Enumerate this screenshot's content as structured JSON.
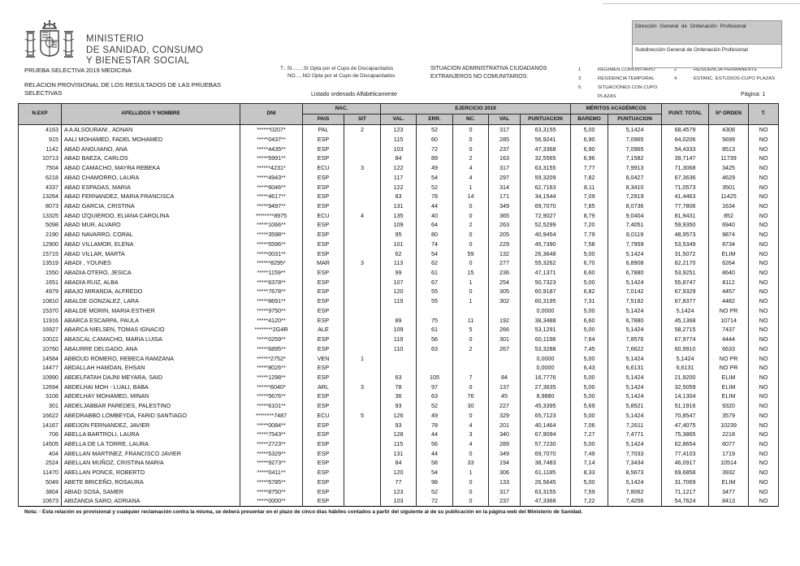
{
  "header": {
    "ministry_line1": "MINISTERIO",
    "ministry_line2": "DE SANIDAD, CONSUMO",
    "ministry_line3": "Y BIENESTAR SOCIAL",
    "title": "PRUEBA SELECTIVA 2019 MEDICINA",
    "subtitle_line1": "RELACION PROVISIONAL DE LOS RESULTADOS DE LAS PRUEBAS",
    "subtitle_line2": "SELECTIVAS",
    "cupo_line1": "T.: SI........SI Opta por el Cupo de Discapacitados",
    "cupo_line2": "NO.....NO Opta por el Cupo de Discapacitados",
    "situacion_line1": "SITUACION ADMINISTRATIVA CIUDADANOS",
    "situacion_line2": "EXTRANJEROS NO COMUNITARIOS:",
    "legend": [
      {
        "num": "1",
        "label": "REGIMEN COMUNITARIO"
      },
      {
        "num": "2",
        "label": "RESIDENCIA PERMANENTE"
      },
      {
        "num": "3",
        "label": "RESIDENCIA TEMPORAL"
      },
      {
        "num": "4",
        "label": "ESTANC. ESTUDIOS-CUPO PLAZAS"
      },
      {
        "num": "5",
        "label": "SITUACIONES CON CUPO PLAZAS"
      }
    ],
    "direccion": "Dirección General de Ordenación Profesional",
    "subdireccion": "Subdirección General de Ordenación Profesional",
    "listado": "Listado ordenado Alfabéticamente",
    "pagina": "Página: 1"
  },
  "table": {
    "group_headers": {
      "nac": "NAC.",
      "ejercicio": "EJERCICIO 2019",
      "meritos": "MÉRITOS ACADÉMICOS"
    },
    "columns": [
      "N.EXP",
      "APELLIDOS Y NOMBRE",
      "DNI",
      "PAIS",
      "SIT",
      "VAL.",
      "ERR.",
      "NC.",
      "VAL",
      "PUNTUACION",
      "BAREMO",
      "PUNTUACION",
      "PUNT. TOTAL",
      "Nº ORDEN",
      "T."
    ],
    "rows": [
      [
        "4163",
        "A A ALSOURANI , ADNAN",
        "******0207*",
        "PAL",
        "2",
        "123",
        "52",
        "0",
        "317",
        "63,3155",
        "5,00",
        "5,1424",
        "68,4579",
        "4308",
        "NO"
      ],
      [
        "915",
        "AALI MOHAMED, FADEL MOHAMED",
        "*****0437**",
        "ESP",
        "",
        "115",
        "60",
        "0",
        "285",
        "56,9241",
        "6,90",
        "7,0965",
        "64,0206",
        "5699",
        "NO"
      ],
      [
        "1142",
        "ABAD ANGUIANO, ANA",
        "*****4435**",
        "ESP",
        "",
        "103",
        "72",
        "0",
        "237",
        "47,3368",
        "6,90",
        "7,0965",
        "54,4333",
        "8513",
        "NO"
      ],
      [
        "10713",
        "ABAD BAEZA, CARLOS",
        "*****5991**",
        "ESP",
        "",
        "84",
        "89",
        "2",
        "163",
        "32,5565",
        "6,96",
        "7,1582",
        "39,7147",
        "11739",
        "NO"
      ],
      [
        "7504",
        "ABAD CAMACHO, MAYRA REBEKA",
        "******4231*",
        "ECU",
        "3",
        "122",
        "49",
        "4",
        "317",
        "63,3155",
        "7,77",
        "7,9913",
        "71,3068",
        "3425",
        "NO"
      ],
      [
        "6218",
        "ABAD CHAMORRO, LAURA",
        "*****4943**",
        "ESP",
        "",
        "117",
        "54",
        "4",
        "297",
        "59,3209",
        "7,82",
        "8,0427",
        "67,3636",
        "4629",
        "NO"
      ],
      [
        "4337",
        "ABAD ESPADAS, MARIA",
        "*****6046**",
        "ESP",
        "",
        "122",
        "52",
        "1",
        "314",
        "62,7163",
        "8,11",
        "8,3410",
        "71,0573",
        "3501",
        "NO"
      ],
      [
        "13264",
        "ABAD FERNANDEZ, MARIA FRANCISCA",
        "*****4617**",
        "ESP",
        "",
        "83",
        "78",
        "14",
        "171",
        "34,1544",
        "7,09",
        "7,2919",
        "41,4463",
        "11425",
        "NO"
      ],
      [
        "8073",
        "ABAD GARCIA, CRISTINA",
        "*****9497**",
        "ESP",
        "",
        "131",
        "44",
        "0",
        "349",
        "69,7070",
        "7,85",
        "8,0736",
        "77,7806",
        "1634",
        "NO"
      ],
      [
        "13325",
        "ABAD IZQUIERDO, ELIANA CAROLINA",
        "********8975",
        "ECU",
        "4",
        "135",
        "40",
        "0",
        "365",
        "72,9027",
        "8,79",
        "9,0404",
        "81,9431",
        "852",
        "NO"
      ],
      [
        "5098",
        "ABAD MUR, ALVARO",
        "*****1066**",
        "ESP",
        "",
        "109",
        "64",
        "2",
        "263",
        "52,5299",
        "7,20",
        "7,4051",
        "59,9350",
        "6940",
        "NO"
      ],
      [
        "2190",
        "ABAD NAVARRO, CORAL",
        "*****3598**",
        "ESP",
        "",
        "95",
        "80",
        "0",
        "205",
        "40,9454",
        "7,79",
        "8,0119",
        "48,9573",
        "9874",
        "NO"
      ],
      [
        "12900",
        "ABAD VILLAMOR, ELENA",
        "*****5596**",
        "ESP",
        "",
        "101",
        "74",
        "0",
        "229",
        "45,7390",
        "7,58",
        "7,7959",
        "53,5349",
        "8734",
        "NO"
      ],
      [
        "15715",
        "ABAD VILLAR, MARTA",
        "*****0031**",
        "ESP",
        "",
        "62",
        "54",
        "59",
        "132",
        "26,3648",
        "5,00",
        "5,1424",
        "31,5072",
        "ELIM",
        "NO"
      ],
      [
        "13519",
        "ABADI , YOUNES",
        "******8295*",
        "MAR",
        "3",
        "113",
        "62",
        "0",
        "277",
        "55,3262",
        "6,70",
        "6,8908",
        "62,2170",
        "6264",
        "NO"
      ],
      [
        "1550",
        "ABADIA OTERO, JESICA",
        "*****1159**",
        "ESP",
        "",
        "99",
        "61",
        "15",
        "236",
        "47,1371",
        "6,60",
        "6,7880",
        "53,9251",
        "8640",
        "NO"
      ],
      [
        "1651",
        "ABADIA RUIZ, ALBA",
        "*****6378**",
        "ESP",
        "",
        "107",
        "67",
        "1",
        "254",
        "50,7323",
        "5,00",
        "5,1424",
        "55,8747",
        "8112",
        "NO"
      ],
      [
        "4979",
        "ABAJO MIRANDA, ALFREDO",
        "*****7678**",
        "ESP",
        "",
        "120",
        "55",
        "0",
        "305",
        "60,9187",
        "6,82",
        "7,0142",
        "67,9329",
        "4457",
        "NO"
      ],
      [
        "10810",
        "ABALDE GONZALEZ, LARA",
        "*****8691**",
        "ESP",
        "",
        "119",
        "55",
        "1",
        "302",
        "60,3195",
        "7,31",
        "7,5182",
        "67,8377",
        "4482",
        "NO"
      ],
      [
        "15370",
        "ABALDE MORIN, MARIA ESTHER",
        "*****9750**",
        "ESP",
        "",
        "",
        "",
        "",
        "",
        "0,0000",
        "5,00",
        "5,1424",
        "5,1424",
        "NO PR",
        "NO"
      ],
      [
        "11916",
        "ABARCA ESCARPA, PAULA",
        "*****4120**",
        "ESP",
        "",
        "89",
        "75",
        "11",
        "192",
        "38,3488",
        "6,60",
        "6,7880",
        "45,1368",
        "10714",
        "NO"
      ],
      [
        "16927",
        "ABARCA NIELSEN, TOMAS IGNACIO",
        "********2G4R",
        "ALE",
        "",
        "109",
        "61",
        "5",
        "266",
        "53,1291",
        "5,00",
        "5,1424",
        "58,2715",
        "7437",
        "NO"
      ],
      [
        "10022",
        "ABASCAL CAMACHO, MARIA LUISA",
        "*****0259**",
        "ESP",
        "",
        "119",
        "56",
        "0",
        "301",
        "60,1198",
        "7,64",
        "7,8576",
        "67,9774",
        "4444",
        "NO"
      ],
      [
        "10760",
        "ABAURRE DELGADO, ANA",
        "*****6895**",
        "ESP",
        "",
        "110",
        "63",
        "2",
        "267",
        "53,3288",
        "7,45",
        "7,6622",
        "60,9910",
        "6633",
        "NO"
      ],
      [
        "14584",
        "ABBOUD ROMERO, REBECA RAMZANA",
        "******2752*",
        "VEN",
        "1",
        "",
        "",
        "",
        "",
        "0,0000",
        "5,00",
        "5,1424",
        "5,1424",
        "NO PR",
        "NO"
      ],
      [
        "14477",
        "ABDALLAH HAMDAN, EHSAN",
        "*****8026**",
        "ESP",
        "",
        "",
        "",
        "",
        "",
        "0,0000",
        "6,43",
        "6,6131",
        "6,6131",
        "NO PR",
        "NO"
      ],
      [
        "10990",
        "ABDELFATAH DAJNI MEYARA, SAID",
        "*****1298**",
        "ESP",
        "",
        "63",
        "105",
        "7",
        "84",
        "16,7776",
        "5,00",
        "5,1424",
        "21,9200",
        "ELIM",
        "NO"
      ],
      [
        "12694",
        "ABDELHAI MOH - LUALI, BABA",
        "******6040*",
        "ARL",
        "3",
        "78",
        "97",
        "0",
        "137",
        "27,3635",
        "5,00",
        "5,1424",
        "32,5059",
        "ELIM",
        "NO"
      ],
      [
        "3106",
        "ABDELHAY MOHAMED, MINAN",
        "*****5676**",
        "ESP",
        "",
        "36",
        "63",
        "76",
        "45",
        "8,9880",
        "5,00",
        "5,1424",
        "14,1304",
        "ELIM",
        "NO"
      ],
      [
        "301",
        "ABDELJABBAR PAREDES, PALESTINO",
        "*****6101**",
        "ESP",
        "",
        "93",
        "52",
        "30",
        "227",
        "45,3395",
        "5,69",
        "5,8521",
        "51,1916",
        "9320",
        "NO"
      ],
      [
        "16622",
        "ABEDRABBO LOMBEYDA, FARID SANTIAGO",
        "********7487",
        "ECU",
        "5",
        "126",
        "49",
        "0",
        "329",
        "65,7123",
        "5,00",
        "5,1424",
        "70,8547",
        "3579",
        "NO"
      ],
      [
        "14167",
        "ABEIJON FERNANDEZ, JAVIER",
        "*****0084**",
        "ESP",
        "",
        "93",
        "78",
        "4",
        "201",
        "40,1464",
        "7,06",
        "7,2611",
        "47,4075",
        "10239",
        "NO"
      ],
      [
        "706",
        "ABELLA BARTROLI, LAURA",
        "*****7543**",
        "ESP",
        "",
        "128",
        "44",
        "3",
        "340",
        "67,9094",
        "7,27",
        "7,4771",
        "75,3865",
        "2218",
        "NO"
      ],
      [
        "14505",
        "ABELLA DE LA TORRE, LAURA",
        "*****2723**",
        "ESP",
        "",
        "115",
        "56",
        "4",
        "289",
        "57,7230",
        "5,00",
        "5,1424",
        "62,8654",
        "6077",
        "NO"
      ],
      [
        "404",
        "ABELLAN MARTINEZ, FRANCISCO JAVIER",
        "*****5329**",
        "ESP",
        "",
        "131",
        "44",
        "0",
        "349",
        "69,7070",
        "7,49",
        "7,7033",
        "77,4103",
        "1719",
        "NO"
      ],
      [
        "2524",
        "ABELLAN MUÑOZ, CRISTINA MARIA",
        "*****9273**",
        "ESP",
        "",
        "84",
        "58",
        "33",
        "194",
        "38,7483",
        "7,14",
        "7,3434",
        "46,0917",
        "10514",
        "NO"
      ],
      [
        "11470",
        "ABELLAN PONCE, ROBERTO",
        "*****0411**",
        "ESP",
        "",
        "120",
        "54",
        "1",
        "306",
        "61,1185",
        "8,33",
        "8,5673",
        "69,6858",
        "3932",
        "NO"
      ],
      [
        "5049",
        "ABETE BRICEÑO, ROSAURA",
        "*****5785**",
        "ESP",
        "",
        "77",
        "98",
        "0",
        "133",
        "26,5645",
        "5,00",
        "5,1424",
        "31,7069",
        "ELIM",
        "NO"
      ],
      [
        "3804",
        "ABIAD SOSA, SAMER",
        "*****8750**",
        "ESP",
        "",
        "123",
        "52",
        "0",
        "317",
        "63,3155",
        "7,59",
        "7,8062",
        "71,1217",
        "3477",
        "NO"
      ],
      [
        "10673",
        "ABIZANDA SARO, ADRIANA",
        "*****0000**",
        "ESP",
        "",
        "103",
        "72",
        "0",
        "237",
        "47,3368",
        "7,22",
        "7,4256",
        "54,7624",
        "8413",
        "NO"
      ]
    ]
  },
  "footer": {
    "nota": "Nota: - Esta relación es provisional y cualquier reclamación contra la misma, se deberá presentar en el plazo de cinco días hábiles contados a partir del siguiente al de su publicación en la página web del Ministerio de Sanidad."
  },
  "colors": {
    "header_bg": "#c6c6c6",
    "box_bg": "#c9c9c9",
    "border": "#000000"
  }
}
